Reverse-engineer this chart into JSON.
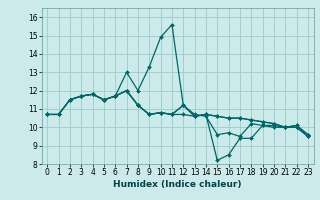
{
  "title": "",
  "xlabel": "Humidex (Indice chaleur)",
  "bg_color": "#cceaea",
  "line_color": "#006666",
  "grid_color": "#99cccc",
  "xlim": [
    -0.5,
    23.5
  ],
  "ylim": [
    8,
    16.5
  ],
  "xticks": [
    0,
    1,
    2,
    3,
    4,
    5,
    6,
    7,
    8,
    9,
    10,
    11,
    12,
    13,
    14,
    15,
    16,
    17,
    18,
    19,
    20,
    21,
    22,
    23
  ],
  "yticks": [
    8,
    9,
    10,
    11,
    12,
    13,
    14,
    15,
    16
  ],
  "series": [
    {
      "x": [
        0,
        1,
        2,
        3,
        4,
        5,
        6,
        7,
        8,
        9,
        10,
        11,
        12,
        13,
        14,
        15,
        16,
        17,
        18,
        19,
        20,
        21,
        22,
        23
      ],
      "y": [
        10.7,
        10.7,
        11.5,
        11.7,
        11.8,
        11.5,
        11.7,
        12.0,
        11.2,
        10.7,
        10.8,
        10.7,
        10.7,
        10.6,
        10.7,
        10.6,
        10.5,
        10.5,
        10.4,
        10.3,
        10.2,
        10.0,
        10.0,
        9.5
      ]
    },
    {
      "x": [
        0,
        1,
        2,
        3,
        4,
        5,
        6,
        7,
        8,
        9,
        10,
        11,
        12,
        13,
        14,
        15,
        16,
        17,
        18,
        19,
        20,
        21,
        22,
        23
      ],
      "y": [
        10.7,
        10.7,
        11.5,
        11.7,
        11.8,
        11.5,
        11.7,
        13.0,
        12.0,
        13.3,
        14.9,
        15.6,
        11.2,
        10.7,
        10.6,
        9.6,
        9.7,
        9.5,
        10.2,
        10.1,
        10.0,
        10.0,
        10.1,
        9.6
      ]
    },
    {
      "x": [
        0,
        1,
        2,
        3,
        4,
        5,
        6,
        7,
        8,
        9,
        10,
        11,
        12,
        13,
        14,
        15,
        16,
        17,
        18,
        19,
        20,
        21,
        22,
        23
      ],
      "y": [
        10.7,
        10.7,
        11.5,
        11.7,
        11.8,
        11.5,
        11.7,
        12.0,
        11.2,
        10.7,
        10.8,
        10.7,
        11.2,
        10.6,
        10.7,
        10.6,
        10.5,
        10.5,
        10.4,
        10.3,
        10.2,
        10.0,
        10.0,
        9.5
      ]
    },
    {
      "x": [
        2,
        3,
        4,
        5,
        6,
        7,
        8,
        9,
        10,
        11,
        12,
        13,
        14,
        15,
        16,
        17,
        18,
        19,
        20,
        21,
        22,
        23
      ],
      "y": [
        11.5,
        11.7,
        11.8,
        11.5,
        11.7,
        12.0,
        11.2,
        10.7,
        10.8,
        10.7,
        11.2,
        10.6,
        10.7,
        8.2,
        8.5,
        9.4,
        9.4,
        10.1,
        10.1,
        10.0,
        10.1,
        9.6
      ]
    }
  ]
}
